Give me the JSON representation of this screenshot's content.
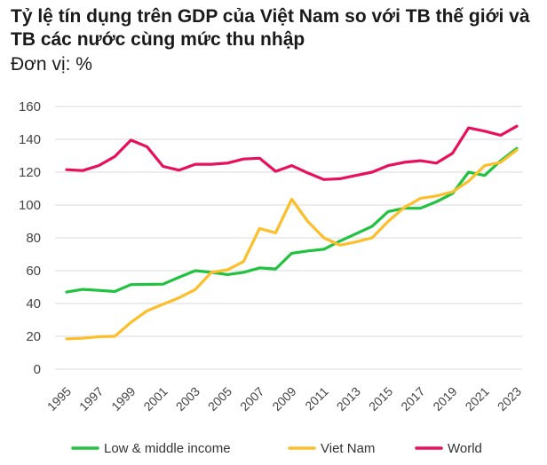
{
  "title": "Tỷ lệ tín dụng trên GDP của Việt Nam so với TB thế giới và TB các nước cùng mức thu nhập",
  "subtitle": "Đơn vị: %",
  "chart_data": {
    "type": "line",
    "title": "Tỷ lệ tín dụng trên GDP của Việt Nam so với TB thế giới và TB các nước cùng mức thu nhập",
    "subtitle": "Đơn vị: %",
    "xlabel": "",
    "ylabel": "",
    "ylim": [
      0,
      160
    ],
    "yticks": [
      "160",
      "140",
      "120",
      "100",
      "80",
      "60",
      "40",
      "20",
      "0"
    ],
    "xtick_labels": [
      "1995",
      "1997",
      "1999",
      "2001",
      "2003",
      "2005",
      "2007",
      "2009",
      "2011",
      "2013",
      "2015",
      "2017",
      "2019",
      "2021",
      "2023"
    ],
    "x": [
      1995,
      1996,
      1997,
      1998,
      1999,
      2000,
      2001,
      2002,
      2003,
      2004,
      2005,
      2006,
      2007,
      2008,
      2009,
      2010,
      2011,
      2012,
      2013,
      2014,
      2015,
      2016,
      2017,
      2018,
      2019,
      2020,
      2021,
      2022,
      2023
    ],
    "grid": "horizontal",
    "legend_position": "bottom",
    "series": [
      {
        "name": "Low & middle income",
        "color": "#22c241",
        "values": [
          47,
          48.6,
          48,
          47.3,
          51.5,
          51.6,
          51.8,
          56,
          60,
          59,
          57.6,
          59,
          61.7,
          61,
          70.6,
          72,
          73,
          78,
          82.5,
          87,
          96,
          98,
          98,
          102,
          107,
          120,
          118,
          127,
          134.5
        ]
      },
      {
        "name": "Viet Nam",
        "color": "#fcbf2b",
        "values": [
          18.5,
          18.8,
          19.8,
          20,
          28.5,
          35.5,
          39.5,
          43.5,
          48.5,
          59,
          60.5,
          65.5,
          85.7,
          83,
          103.5,
          90,
          80,
          75.5,
          77.5,
          80,
          90,
          98.5,
          104,
          105.5,
          108,
          114.5,
          124,
          126,
          133.5
        ]
      },
      {
        "name": "World",
        "color": "#e8105c",
        "values": [
          121.5,
          121,
          124,
          129.5,
          139.5,
          135.5,
          123.5,
          121.2,
          124.8,
          124.8,
          125.5,
          128,
          128.5,
          120.5,
          124,
          119.5,
          115.5,
          116,
          118,
          120,
          124,
          126,
          127,
          125.5,
          131.5,
          147,
          145,
          142.5,
          148
        ]
      }
    ]
  }
}
